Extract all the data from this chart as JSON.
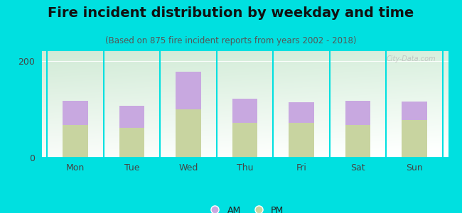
{
  "title": "Fire incident distribution by weekday and time",
  "subtitle": "(Based on 875 fire incident reports from years 2002 - 2018)",
  "categories": [
    "Mon",
    "Tue",
    "Wed",
    "Thu",
    "Fri",
    "Sat",
    "Sun"
  ],
  "pm_values": [
    68,
    62,
    100,
    72,
    72,
    68,
    78
  ],
  "am_values": [
    50,
    45,
    78,
    50,
    42,
    50,
    38
  ],
  "am_color": "#c8a8e0",
  "pm_color": "#c8d4a0",
  "background_color": "#00e0e0",
  "ylim": [
    0,
    220
  ],
  "yticks": [
    0,
    200
  ],
  "bar_width": 0.45,
  "title_fontsize": 14,
  "subtitle_fontsize": 8.5,
  "tick_fontsize": 9,
  "legend_fontsize": 9,
  "watermark": "City-Data.com"
}
